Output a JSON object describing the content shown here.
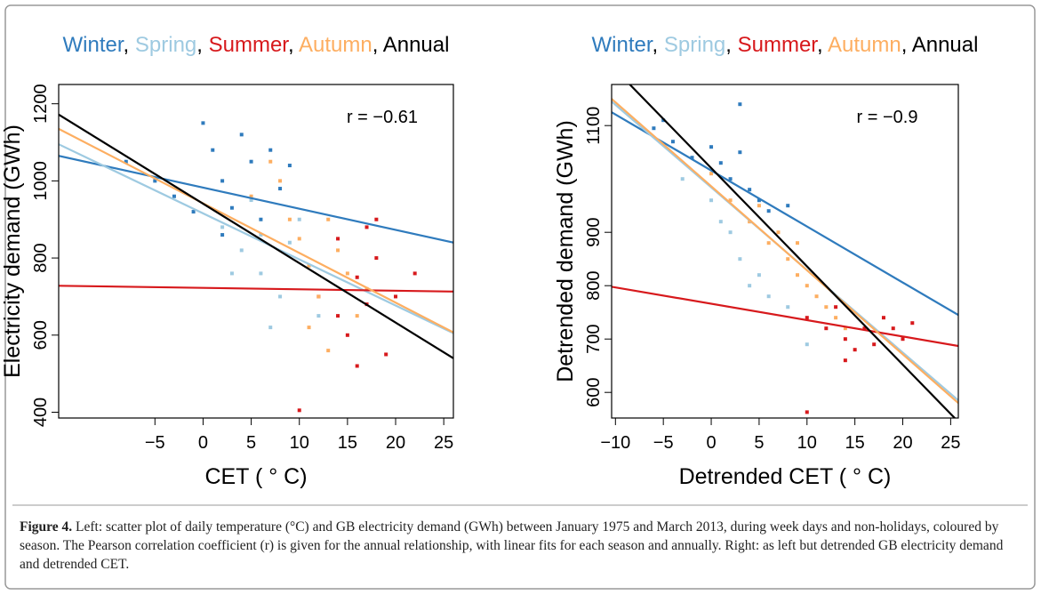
{
  "chart_data": [
    {
      "type": "scatter",
      "title_parts": [
        {
          "text": "Winter",
          "color": "#2f7bbd"
        },
        {
          "text": "Spring",
          "color": "#9ecae1"
        },
        {
          "text": "Summer",
          "color": "#d7191c"
        },
        {
          "text": "Autumn",
          "color": "#fdae61"
        },
        {
          "text": "Annual",
          "color": "#000000"
        }
      ],
      "title_separator": ", ",
      "annotation": "r = −0.61",
      "xlabel": "CET ( ° C)",
      "ylabel": "Electricity demand (GWh)",
      "xlim": [
        -15,
        26
      ],
      "ylim": [
        385,
        1250
      ],
      "xticks": [
        {
          "value": -5,
          "label": "−5"
        },
        0,
        5,
        10,
        15,
        20,
        25
      ],
      "yticks": [
        400,
        600,
        800,
        1000,
        1200
      ],
      "series": [
        {
          "name": "Winter",
          "color": "#2f7bbd",
          "x": [
            -8,
            -5,
            -3,
            0,
            1,
            2,
            3,
            4,
            5,
            6,
            7,
            8,
            9,
            2,
            -1
          ],
          "values": [
            1050,
            1000,
            960,
            1150,
            1080,
            1000,
            930,
            1120,
            1050,
            900,
            1080,
            980,
            1040,
            860,
            920
          ]
        },
        {
          "name": "Spring",
          "color": "#9ecae1",
          "x": [
            2,
            4,
            6,
            8,
            10,
            5,
            7,
            9,
            11,
            3,
            12,
            6
          ],
          "values": [
            880,
            820,
            760,
            700,
            900,
            950,
            620,
            840,
            780,
            760,
            650,
            860
          ]
        },
        {
          "name": "Summer",
          "color": "#d7191c",
          "x": [
            12,
            14,
            15,
            16,
            17,
            18,
            19,
            16,
            14,
            18,
            20,
            22,
            17,
            10
          ],
          "values": [
            700,
            850,
            600,
            750,
            880,
            800,
            550,
            520,
            650,
            900,
            700,
            760,
            680,
            405
          ]
        },
        {
          "name": "Autumn",
          "color": "#fdae61",
          "x": [
            5,
            7,
            9,
            10,
            11,
            12,
            13,
            14,
            15,
            16,
            11,
            8,
            17,
            13
          ],
          "values": [
            960,
            1050,
            900,
            850,
            780,
            700,
            900,
            820,
            760,
            650,
            620,
            1000,
            720,
            560
          ]
        }
      ],
      "fit_lines": [
        {
          "color": "#2f7bbd",
          "x": [
            -15,
            26
          ],
          "values": [
            1065,
            840
          ]
        },
        {
          "color": "#9ecae1",
          "x": [
            -15,
            26
          ],
          "values": [
            1095,
            605
          ]
        },
        {
          "color": "#d7191c",
          "x": [
            -15,
            26
          ],
          "values": [
            728,
            713
          ]
        },
        {
          "color": "#fdae61",
          "x": [
            -15,
            26
          ],
          "values": [
            1135,
            607
          ]
        },
        {
          "color": "#000000",
          "x": [
            -15,
            26
          ],
          "values": [
            1172,
            540
          ]
        }
      ]
    },
    {
      "type": "scatter",
      "title_parts": [
        {
          "text": "Winter",
          "color": "#2f7bbd"
        },
        {
          "text": "Spring",
          "color": "#9ecae1"
        },
        {
          "text": "Summer",
          "color": "#d7191c"
        },
        {
          "text": "Autumn",
          "color": "#fdae61"
        },
        {
          "text": "Annual",
          "color": "#000000"
        }
      ],
      "title_separator": ", ",
      "annotation": "r = −0.9",
      "xlabel": "Detrended CET ( ° C)",
      "ylabel": "Detrended demand (GWh)",
      "xlim": [
        -10.4,
        25.8
      ],
      "ylim": [
        552,
        1177
      ],
      "xticks": [
        {
          "value": -10,
          "label": "−10"
        },
        {
          "value": -5,
          "label": "−5"
        },
        0,
        5,
        10,
        15,
        20,
        25
      ],
      "yticks": [
        600,
        700,
        800,
        900,
        1100
      ],
      "series": [
        {
          "name": "Winter",
          "color": "#2f7bbd",
          "x": [
            -6,
            -4,
            -2,
            0,
            1,
            2,
            3,
            4,
            5,
            6,
            8,
            -5,
            3
          ],
          "values": [
            1095,
            1070,
            1040,
            1060,
            1030,
            1000,
            1050,
            980,
            960,
            940,
            950,
            1110,
            1140
          ]
        },
        {
          "name": "Spring",
          "color": "#9ecae1",
          "x": [
            -3,
            0,
            2,
            3,
            5,
            6,
            8,
            10,
            1,
            4
          ],
          "values": [
            1000,
            960,
            900,
            850,
            820,
            780,
            760,
            690,
            920,
            800
          ]
        },
        {
          "name": "Summer",
          "color": "#d7191c",
          "x": [
            10,
            12,
            14,
            15,
            16,
            17,
            18,
            19,
            20,
            14,
            13,
            10,
            21
          ],
          "values": [
            740,
            720,
            700,
            680,
            720,
            690,
            740,
            720,
            700,
            660,
            760,
            563,
            730
          ]
        },
        {
          "name": "Autumn",
          "color": "#fdae61",
          "x": [
            0,
            2,
            4,
            6,
            7,
            8,
            9,
            10,
            11,
            12,
            13,
            14,
            9,
            5
          ],
          "values": [
            1010,
            960,
            920,
            880,
            900,
            850,
            820,
            800,
            780,
            760,
            740,
            720,
            880,
            950
          ]
        }
      ],
      "fit_lines": [
        {
          "color": "#2f7bbd",
          "x": [
            -10.4,
            25.8
          ],
          "values": [
            1125,
            745
          ]
        },
        {
          "color": "#9ecae1",
          "x": [
            -10.4,
            25.8
          ],
          "values": [
            1145,
            585
          ]
        },
        {
          "color": "#d7191c",
          "x": [
            -10.4,
            25.8
          ],
          "values": [
            798,
            687
          ]
        },
        {
          "color": "#fdae61",
          "x": [
            -10.4,
            25.8
          ],
          "values": [
            1150,
            580
          ]
        },
        {
          "color": "#000000",
          "x": [
            -8.5,
            25.8
          ],
          "values": [
            1177,
            545
          ]
        }
      ]
    }
  ],
  "caption": {
    "label": "Figure 4.",
    "text": " Left: scatter plot of daily temperature (°C) and GB electricity demand (GWh) between January 1975 and March 2013, during week days and non-holidays, coloured by season. The Pearson correlation coefficient (r) is given for the annual relationship, with linear fits for each season and annually. Right: as left but detrended GB electricity demand and detrended CET."
  }
}
